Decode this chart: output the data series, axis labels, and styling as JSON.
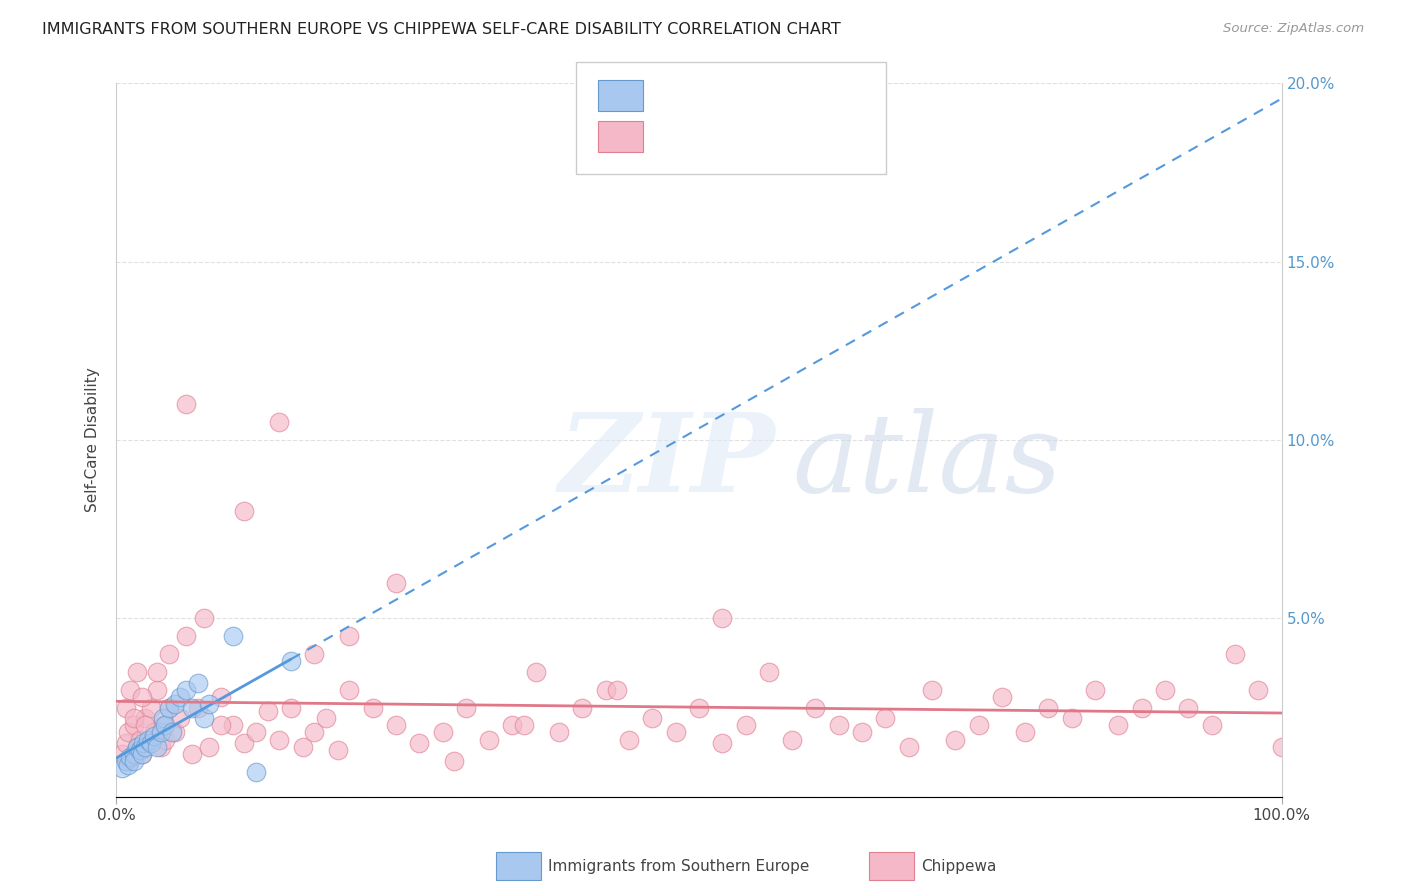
{
  "title": "IMMIGRANTS FROM SOUTHERN EUROPE VS CHIPPEWA SELF-CARE DISABILITY CORRELATION CHART",
  "source": "Source: ZipAtlas.com",
  "ylabel": "Self-Care Disability",
  "xlim": [
    0,
    1.0
  ],
  "ylim": [
    0,
    0.2
  ],
  "yticks": [
    0.0,
    0.05,
    0.1,
    0.15,
    0.2
  ],
  "yticklabels_right": [
    "",
    "5.0%",
    "10.0%",
    "15.0%",
    "20.0%"
  ],
  "background_color": "#ffffff",
  "grid_color": "#e0e0e0",
  "blue_fill": "#a8c8f0",
  "blue_edge": "#6699cc",
  "pink_fill": "#f4b8c8",
  "pink_edge": "#e08090",
  "blue_line_color": "#5599dd",
  "pink_line_color": "#e07888",
  "blue_r_color": "#5599dd",
  "blue_n_color": "#dd4422",
  "pink_r_color": "#5599dd",
  "pink_n_color": "#dd4422",
  "blue_scatter_x": [
    0.005,
    0.008,
    0.01,
    0.012,
    0.015,
    0.015,
    0.018,
    0.02,
    0.022,
    0.023,
    0.025,
    0.027,
    0.03,
    0.032,
    0.035,
    0.038,
    0.04,
    0.042,
    0.045,
    0.048,
    0.05,
    0.055,
    0.06,
    0.065,
    0.07,
    0.075,
    0.08,
    0.1,
    0.12,
    0.15
  ],
  "blue_scatter_y": [
    0.008,
    0.01,
    0.009,
    0.011,
    0.012,
    0.01,
    0.014,
    0.013,
    0.012,
    0.015,
    0.014,
    0.016,
    0.015,
    0.017,
    0.014,
    0.018,
    0.022,
    0.02,
    0.025,
    0.018,
    0.026,
    0.028,
    0.03,
    0.025,
    0.032,
    0.022,
    0.026,
    0.045,
    0.007,
    0.038
  ],
  "pink_scatter_x": [
    0.005,
    0.008,
    0.01,
    0.012,
    0.015,
    0.018,
    0.02,
    0.022,
    0.025,
    0.028,
    0.03,
    0.032,
    0.035,
    0.038,
    0.04,
    0.042,
    0.045,
    0.05,
    0.055,
    0.06,
    0.065,
    0.07,
    0.08,
    0.09,
    0.1,
    0.11,
    0.12,
    0.13,
    0.14,
    0.15,
    0.16,
    0.17,
    0.18,
    0.19,
    0.2,
    0.22,
    0.24,
    0.26,
    0.28,
    0.3,
    0.32,
    0.34,
    0.36,
    0.38,
    0.4,
    0.42,
    0.44,
    0.46,
    0.48,
    0.5,
    0.52,
    0.54,
    0.56,
    0.58,
    0.6,
    0.62,
    0.64,
    0.66,
    0.68,
    0.7,
    0.72,
    0.74,
    0.76,
    0.78,
    0.8,
    0.82,
    0.84,
    0.86,
    0.88,
    0.9,
    0.92,
    0.94,
    0.96,
    0.98,
    1.0,
    0.008,
    0.012,
    0.015,
    0.018,
    0.022,
    0.025,
    0.035,
    0.045,
    0.06,
    0.075,
    0.09,
    0.11,
    0.14,
    0.17,
    0.2,
    0.24,
    0.29,
    0.35,
    0.43,
    0.52
  ],
  "pink_scatter_y": [
    0.012,
    0.015,
    0.018,
    0.01,
    0.02,
    0.014,
    0.016,
    0.012,
    0.022,
    0.015,
    0.025,
    0.018,
    0.03,
    0.014,
    0.02,
    0.016,
    0.025,
    0.018,
    0.022,
    0.11,
    0.012,
    0.025,
    0.014,
    0.028,
    0.02,
    0.015,
    0.018,
    0.024,
    0.016,
    0.025,
    0.014,
    0.018,
    0.022,
    0.013,
    0.03,
    0.025,
    0.02,
    0.015,
    0.018,
    0.025,
    0.016,
    0.02,
    0.035,
    0.018,
    0.025,
    0.03,
    0.016,
    0.022,
    0.018,
    0.025,
    0.015,
    0.02,
    0.035,
    0.016,
    0.025,
    0.02,
    0.018,
    0.022,
    0.014,
    0.03,
    0.016,
    0.02,
    0.028,
    0.018,
    0.025,
    0.022,
    0.03,
    0.02,
    0.025,
    0.03,
    0.025,
    0.02,
    0.04,
    0.03,
    0.014,
    0.025,
    0.03,
    0.022,
    0.035,
    0.028,
    0.02,
    0.035,
    0.04,
    0.045,
    0.05,
    0.02,
    0.08,
    0.105,
    0.04,
    0.045,
    0.06,
    0.01,
    0.02,
    0.03,
    0.05
  ]
}
